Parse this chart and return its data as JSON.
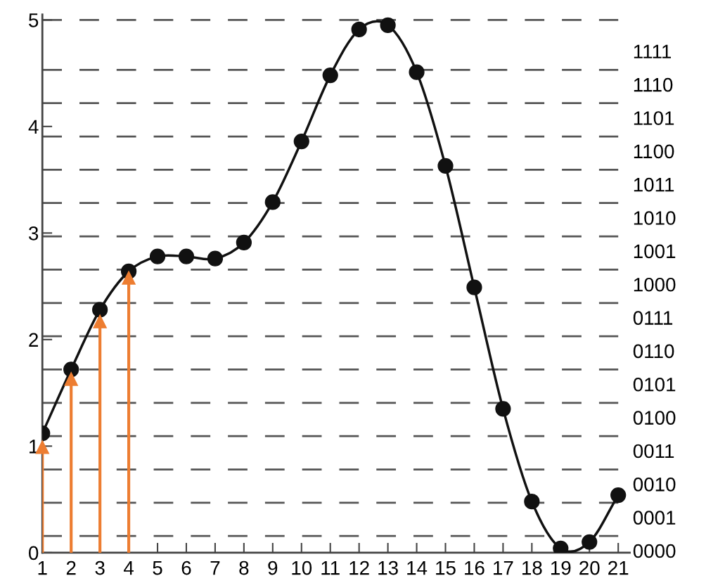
{
  "chart_data": {
    "type": "line",
    "x": [
      1,
      2,
      3,
      4,
      5,
      6,
      7,
      8,
      9,
      10,
      11,
      12,
      13,
      14,
      15,
      16,
      17,
      18,
      19,
      20,
      21
    ],
    "series": [
      {
        "color": "#111111",
        "marker": "circle",
        "values": [
          1.12,
          1.72,
          2.28,
          2.64,
          2.78,
          2.78,
          2.76,
          2.91,
          3.29,
          3.86,
          4.48,
          4.91,
          4.95,
          4.51,
          3.63,
          2.49,
          1.35,
          0.48,
          0.04,
          0.1,
          0.54
        ]
      },
      {
        "type": "lollipop",
        "color": "#ed7d31",
        "marker": "triangle",
        "values": [
          0.99,
          1.63,
          2.17,
          2.58,
          null,
          null,
          null,
          null,
          null,
          null,
          null,
          null,
          null,
          null,
          null,
          null,
          null,
          null,
          null,
          null,
          null
        ]
      }
    ],
    "xlim": [
      1,
      21.4
    ],
    "xticks": [
      1,
      2,
      3,
      4,
      5,
      6,
      7,
      8,
      9,
      10,
      11,
      12,
      13,
      14,
      15,
      16,
      17,
      18,
      19,
      20,
      21
    ],
    "ylim": [
      0,
      5.05
    ],
    "yticks": [
      0,
      1,
      2,
      3,
      4,
      5
    ],
    "annotations": [
      "0000",
      "0001",
      "0010",
      "0011",
      "0100",
      "0101",
      "0110",
      "0111",
      "1000",
      "1001",
      "1010",
      "1011",
      "1100",
      "1101",
      "1110",
      "1111"
    ],
    "ref_lines": [
      {
        "axis": "y",
        "value": 0.15625,
        "line_style": "dashed",
        "color": "#555555"
      },
      {
        "axis": "y",
        "value": 0.46875,
        "line_style": "dashed",
        "color": "#555555"
      },
      {
        "axis": "y",
        "value": 0.78125,
        "line_style": "dashed",
        "color": "#555555"
      },
      {
        "axis": "y",
        "value": 1.09375,
        "line_style": "dashed",
        "color": "#555555"
      },
      {
        "axis": "y",
        "value": 1.40625,
        "line_style": "dashed",
        "color": "#555555"
      },
      {
        "axis": "y",
        "value": 1.71875,
        "line_style": "dashed",
        "color": "#555555"
      },
      {
        "axis": "y",
        "value": 2.03125,
        "line_style": "dashed",
        "color": "#555555"
      },
      {
        "axis": "y",
        "value": 2.34375,
        "line_style": "dashed",
        "color": "#555555"
      },
      {
        "axis": "y",
        "value": 2.65625,
        "line_style": "dashed",
        "color": "#555555"
      },
      {
        "axis": "y",
        "value": 2.96875,
        "line_style": "dashed",
        "color": "#555555"
      },
      {
        "axis": "y",
        "value": 3.28125,
        "line_style": "dashed",
        "color": "#555555"
      },
      {
        "axis": "y",
        "value": 3.59375,
        "line_style": "dashed",
        "color": "#555555"
      },
      {
        "axis": "y",
        "value": 3.90625,
        "line_style": "dashed",
        "color": "#555555"
      },
      {
        "axis": "y",
        "value": 4.21875,
        "line_style": "dashed",
        "color": "#555555"
      },
      {
        "axis": "y",
        "value": 4.53125,
        "line_style": "dashed",
        "color": "#555555"
      },
      {
        "axis": "y",
        "value": 5,
        "line_style": "dashed",
        "color": "#555555"
      }
    ],
    "grid": false,
    "legend": false
  }
}
